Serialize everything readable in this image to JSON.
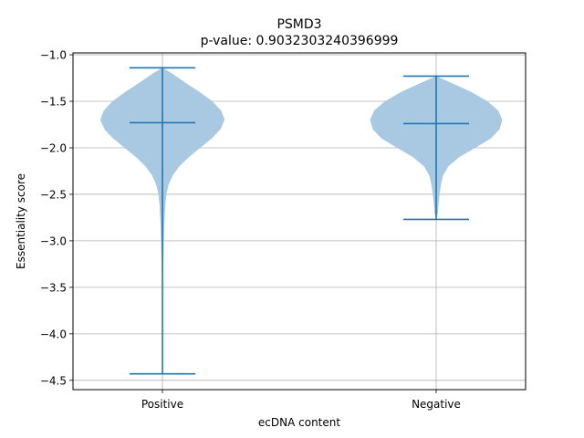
{
  "chart_data": {
    "type": "violin",
    "title": "PSMD3",
    "subtitle": "p-value: 0.9032303240396999",
    "xlabel": "ecDNA content",
    "ylabel": "Essentiality score",
    "categories": [
      "Positive",
      "Negative"
    ],
    "ylim": [
      -4.6,
      -0.98
    ],
    "yticks": [
      -1.0,
      -1.5,
      -2.0,
      -2.5,
      -3.0,
      -3.5,
      -4.0,
      -4.5
    ],
    "ytick_labels": [
      "−1.0",
      "−1.5",
      "−2.0",
      "−2.5",
      "−3.0",
      "−3.5",
      "−4.0",
      "−4.5"
    ],
    "grid": true,
    "colors": {
      "body": "#a9c9e3",
      "lines": "#1f77b4",
      "grid": "#b0b0b0"
    },
    "series": [
      {
        "category": "Positive",
        "max": -1.14,
        "median": -1.73,
        "min": -4.43,
        "density": [
          [
            -1.14,
            0.0
          ],
          [
            -1.2,
            0.14
          ],
          [
            -1.3,
            0.34
          ],
          [
            -1.4,
            0.55
          ],
          [
            -1.5,
            0.74
          ],
          [
            -1.6,
            0.87
          ],
          [
            -1.7,
            0.92
          ],
          [
            -1.8,
            0.86
          ],
          [
            -1.9,
            0.73
          ],
          [
            -2.0,
            0.56
          ],
          [
            -2.1,
            0.39
          ],
          [
            -2.2,
            0.25
          ],
          [
            -2.3,
            0.15
          ],
          [
            -2.4,
            0.09
          ],
          [
            -2.5,
            0.06
          ],
          [
            -2.6,
            0.045
          ],
          [
            -2.8,
            0.03
          ],
          [
            -3.0,
            0.02
          ],
          [
            -3.2,
            0.012
          ],
          [
            -3.4,
            0.007
          ],
          [
            -3.8,
            0.004
          ],
          [
            -4.2,
            0.002
          ],
          [
            -4.43,
            0.0
          ]
        ]
      },
      {
        "category": "Negative",
        "max": -1.23,
        "median": -1.74,
        "min": -2.77,
        "density": [
          [
            -1.23,
            0.0
          ],
          [
            -1.3,
            0.22
          ],
          [
            -1.4,
            0.52
          ],
          [
            -1.5,
            0.76
          ],
          [
            -1.6,
            0.92
          ],
          [
            -1.7,
            0.98
          ],
          [
            -1.8,
            0.94
          ],
          [
            -1.9,
            0.81
          ],
          [
            -2.0,
            0.58
          ],
          [
            -2.1,
            0.34
          ],
          [
            -2.2,
            0.18
          ],
          [
            -2.3,
            0.1
          ],
          [
            -2.4,
            0.07
          ],
          [
            -2.5,
            0.05
          ],
          [
            -2.6,
            0.035
          ],
          [
            -2.7,
            0.025
          ],
          [
            -2.77,
            0.0
          ]
        ]
      }
    ]
  }
}
